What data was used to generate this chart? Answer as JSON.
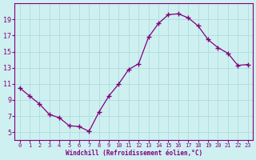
{
  "x": [
    0,
    1,
    2,
    3,
    4,
    5,
    6,
    7,
    8,
    9,
    10,
    11,
    12,
    13,
    14,
    15,
    16,
    17,
    18,
    19,
    20,
    21,
    22,
    23
  ],
  "y": [
    10.5,
    9.5,
    8.5,
    7.2,
    6.8,
    5.8,
    5.7,
    5.1,
    7.5,
    9.5,
    11.0,
    12.8,
    13.5,
    16.8,
    18.5,
    19.6,
    19.7,
    19.2,
    18.2,
    16.5,
    15.5,
    14.8,
    13.3,
    13.4
  ],
  "line_color": "#800080",
  "marker": "+",
  "marker_size": 4,
  "bg_color": "#cff0f0",
  "plot_bg_color": "#cff0f0",
  "grid_color": "#aadddd",
  "xlabel": "Windchill (Refroidissement éolien,°C)",
  "xlabel_color": "#800080",
  "tick_color": "#800080",
  "spine_color": "#800080",
  "ylim": [
    4,
    21
  ],
  "xlim": [
    -0.5,
    23.5
  ],
  "yticks": [
    5,
    7,
    9,
    11,
    13,
    15,
    17,
    19
  ],
  "xtick_labels": [
    "0",
    "1",
    "2",
    "3",
    "4",
    "5",
    "6",
    "7",
    "8",
    "9",
    "1011",
    "1213",
    "1415",
    "1617",
    "1819",
    "2021",
    "2223"
  ],
  "font_family": "monospace"
}
